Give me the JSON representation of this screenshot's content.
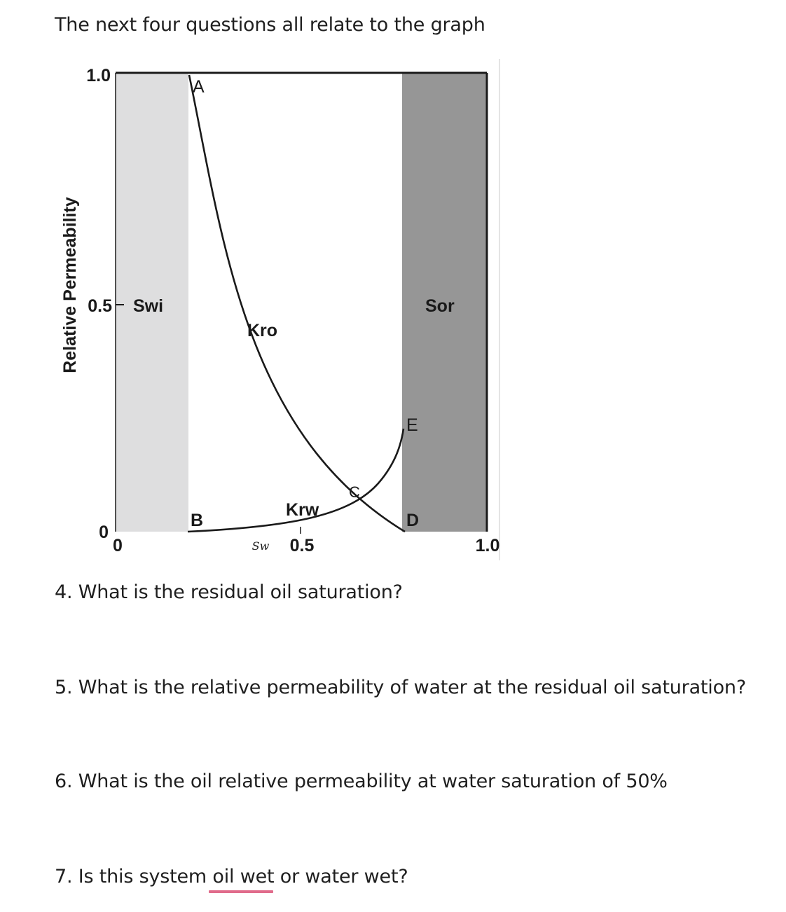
{
  "document": {
    "intro": "The next four questions all relate to the graph",
    "questions": [
      {
        "number": 4,
        "text": "4. What is the residual oil saturation?"
      },
      {
        "number": 5,
        "text": "5. What is the relative permeability of water at the residual oil saturation?"
      },
      {
        "number": 6,
        "text": "6. What is the oil relative permeability at water saturation of 50%"
      },
      {
        "number": 7,
        "text": "7. Is this system oil wet or water wet?"
      }
    ]
  },
  "figure": {
    "ylabel": "Relative Permeability",
    "xlabel": "Sw",
    "y_ticks": [
      "1.0",
      "0.5",
      "0"
    ],
    "x_ticks": [
      "0",
      "0.5",
      "1.0"
    ],
    "region_labels": {
      "swi": "Swi",
      "sor": "Sor"
    },
    "curve_labels": {
      "kro": "Kro",
      "krw": "Krw"
    },
    "point_labels": {
      "a": "A",
      "b": "B",
      "c": "C",
      "d": "D",
      "e": "E"
    },
    "colors": {
      "swi_region": "#dededf",
      "sor_region": "#969696",
      "curve": "#1a1a1a"
    }
  },
  "chart_data": {
    "type": "line",
    "xlabel": "Sw",
    "ylabel": "Relative Permeability",
    "xlim": [
      0,
      1.0
    ],
    "ylim": [
      0,
      1.0
    ],
    "shaded_regions": [
      {
        "name": "Swi",
        "x_range": [
          0,
          0.19
        ],
        "color": "#dededf"
      },
      {
        "name": "Sor",
        "x_range": [
          0.77,
          1.0
        ],
        "color": "#969696"
      }
    ],
    "series": [
      {
        "name": "Kro",
        "x": [
          0.19,
          0.23,
          0.27,
          0.31,
          0.35,
          0.39,
          0.43,
          0.47,
          0.51,
          0.55,
          0.59,
          0.63,
          0.67,
          0.71,
          0.77
        ],
        "y": [
          1.0,
          0.82,
          0.66,
          0.52,
          0.41,
          0.32,
          0.25,
          0.19,
          0.145,
          0.105,
          0.075,
          0.05,
          0.03,
          0.015,
          0.0
        ]
      },
      {
        "name": "Krw",
        "x": [
          0.19,
          0.25,
          0.31,
          0.37,
          0.43,
          0.49,
          0.53,
          0.57,
          0.61,
          0.65,
          0.69,
          0.73,
          0.75,
          0.77
        ],
        "y": [
          0.0,
          0.003,
          0.006,
          0.01,
          0.016,
          0.024,
          0.032,
          0.044,
          0.06,
          0.09,
          0.13,
          0.18,
          0.21,
          0.23
        ]
      }
    ],
    "points": [
      {
        "label": "A",
        "x": 0.19,
        "y": 1.0
      },
      {
        "label": "B",
        "x": 0.19,
        "y": 0.0
      },
      {
        "label": "C",
        "x": 0.65,
        "y": 0.07
      },
      {
        "label": "D",
        "x": 0.77,
        "y": 0.0
      },
      {
        "label": "E",
        "x": 0.77,
        "y": 0.23
      }
    ]
  }
}
